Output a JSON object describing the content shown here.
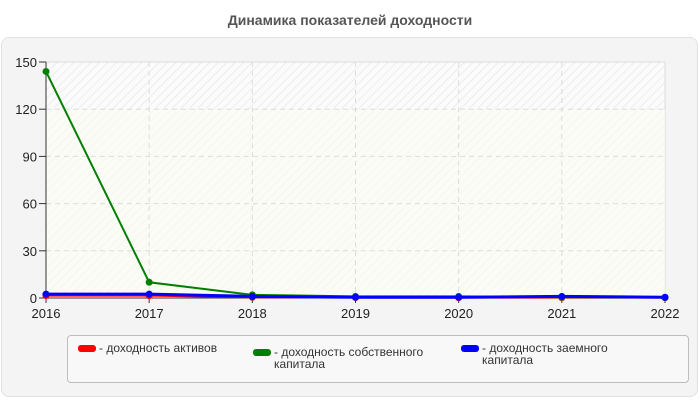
{
  "chart_data": {
    "type": "line",
    "title": "Динамика показателей доходности",
    "x": [
      "2016",
      "2017",
      "2018",
      "2019",
      "2020",
      "2021",
      "2022"
    ],
    "series": [
      {
        "name": "- доходность активов",
        "color": "#ff0000",
        "values": [
          1.5,
          1.5,
          0.5,
          0.3,
          0.2,
          0.2,
          0.2
        ]
      },
      {
        "name": "- доходность собственного капитала",
        "color": "#008000",
        "values": [
          144,
          10,
          2,
          1,
          1,
          0.5,
          0.3
        ]
      },
      {
        "name": "- доходность заемного капитала",
        "color": "#0000ff",
        "values": [
          2.5,
          2.5,
          1,
          0.5,
          0.5,
          1,
          0.5
        ]
      }
    ],
    "xlabel": "",
    "ylabel": "",
    "ylim": [
      0,
      150
    ],
    "yticks": [
      0,
      30,
      60,
      90,
      120,
      150
    ],
    "grid": true,
    "legend_position": "bottom"
  }
}
